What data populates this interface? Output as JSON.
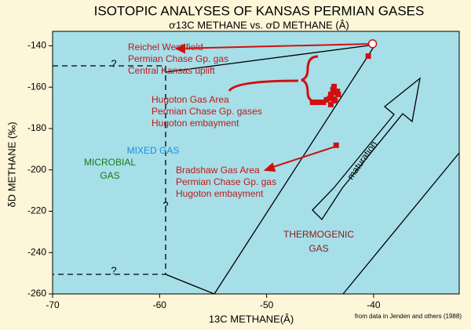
{
  "chart_data": {
    "type": "scatter",
    "title": "ISOTOPIC ANALYSES OF KANSAS PERMIAN GASES",
    "subtitle": "ơ13C METHANE vs. ơD METHANE (Â)",
    "x_label": "13C METHANE(Â)",
    "y_label": "δD METHANE (‰)",
    "source": "from data in Jenden and others (1988)",
    "xlim": [
      -70,
      -32
    ],
    "ylim": [
      -260,
      -133
    ],
    "xticks": [
      -70,
      -60,
      -50,
      -40
    ],
    "yticks": [
      -140,
      -160,
      -180,
      -200,
      -220,
      -240,
      -260
    ],
    "series": [
      {
        "color": "#d01010",
        "marker": "square",
        "x": [
          -45.7,
          -45.2,
          -44.7,
          -44.4,
          -44.1,
          -44.0,
          -43.8,
          -43.7,
          -43.6,
          -43.4,
          -43.7,
          -44.0,
          -43.6,
          -43.3,
          -40.5,
          -43.5
        ],
        "values": [
          -167.3,
          -167.3,
          -167.3,
          -166.1,
          -165.4,
          -163.5,
          -161.2,
          -159.7,
          -162.7,
          -162.0,
          -165.8,
          -168.4,
          -166.5,
          -163.5,
          -145,
          -188.1
        ]
      },
      {
        "color": "#d01010",
        "marker": "open-circle",
        "x": [
          -40.1
        ],
        "values": [
          -139
        ]
      }
    ],
    "annotations": [
      {
        "text": "Reichel West field",
        "color": "#c01818"
      },
      {
        "text": "Permian Chase Gp. gas",
        "color": "#c01818"
      },
      {
        "text": "Central Kansas uplift",
        "color": "#c01818"
      },
      {
        "text": "Hugoton Gas Area",
        "color": "#c01818"
      },
      {
        "text": "Permian Chase Gp. gases",
        "color": "#c01818"
      },
      {
        "text": "Hugoton embayment",
        "color": "#c01818"
      },
      {
        "text": "Bradshaw Gas Area",
        "color": "#c01818"
      },
      {
        "text": "Permian Chase Gp. gas",
        "color": "#c01818"
      },
      {
        "text": "Hugoton embayment",
        "color": "#c01818"
      },
      {
        "text": "MICROBIAL",
        "color": "#1a7a1a"
      },
      {
        "text": "GAS",
        "color": "#1a7a1a"
      },
      {
        "text": "MIXED GAS",
        "color": "#1a8ee0"
      },
      {
        "text": "THERMOGENIC",
        "color": "#8a1a1a"
      },
      {
        "text": "GAS",
        "color": "#8a1a1a"
      },
      {
        "text": "maturation",
        "color": "#000000"
      },
      {
        "text": "?",
        "color": "#000000"
      },
      {
        "text": "?",
        "color": "#000000"
      },
      {
        "text": "?",
        "color": "#000000"
      }
    ]
  }
}
